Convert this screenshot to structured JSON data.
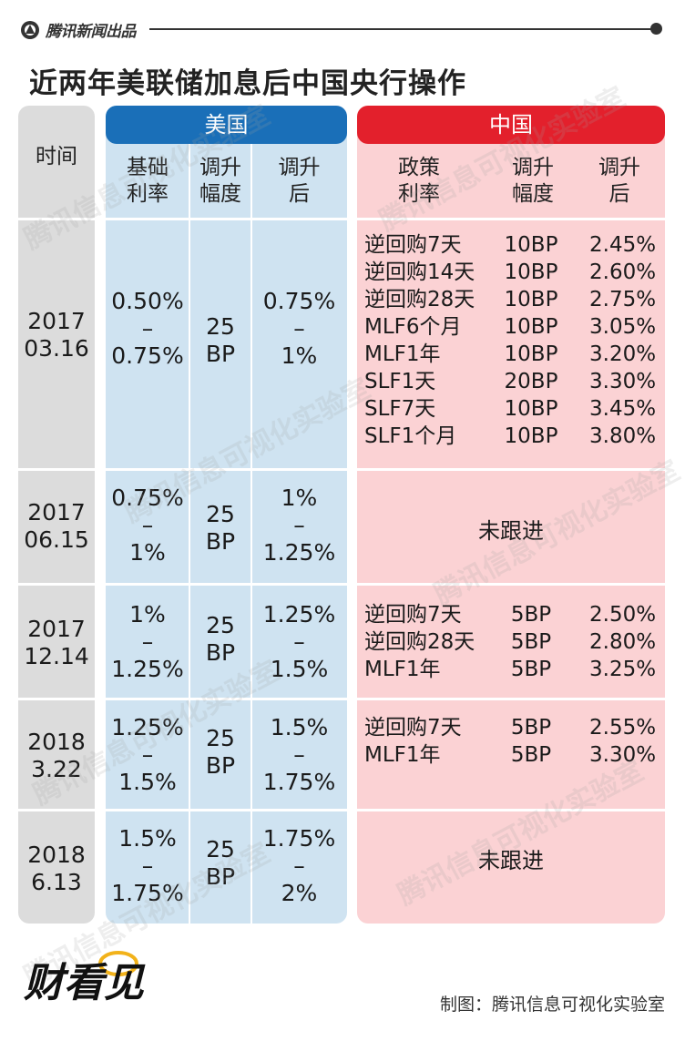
{
  "header": {
    "brand": "腾讯新闻出品",
    "title": "近两年美联储加息后中国央行操作"
  },
  "columns": {
    "time": "时间",
    "us_group": "美国",
    "cn_group": "中国",
    "us_base_rate": "基础\n利率",
    "us_hike": "调升\n幅度",
    "us_after": "调升\n后",
    "cn_policy_rate": "政策\n利率",
    "cn_hike": "调升\n幅度",
    "cn_after": "调升\n后"
  },
  "chart_data": {
    "type": "table",
    "title": "近两年美联储加息后中国央行操作",
    "rows": [
      {
        "date": "2017\n03.16",
        "us_base": "0.50%\n–\n0.75%",
        "us_hike": "25\nBP",
        "us_after": "0.75%\n–\n1%",
        "cn": [
          {
            "name": "逆回购7天",
            "bp": "10BP",
            "after": "2.45%"
          },
          {
            "name": "逆回购14天",
            "bp": "10BP",
            "after": "2.60%"
          },
          {
            "name": "逆回购28天",
            "bp": "10BP",
            "after": "2.75%"
          },
          {
            "name": "MLF6个月",
            "bp": "10BP",
            "after": "3.05%"
          },
          {
            "name": "MLF1年",
            "bp": "10BP",
            "after": "3.20%"
          },
          {
            "name": "SLF1天",
            "bp": "20BP",
            "after": "3.30%"
          },
          {
            "name": "SLF7天",
            "bp": "10BP",
            "after": "3.45%"
          },
          {
            "name": "SLF1个月",
            "bp": "10BP",
            "after": "3.80%"
          }
        ],
        "cn_note": ""
      },
      {
        "date": "2017\n06.15",
        "us_base": "0.75%\n–\n1%",
        "us_hike": "25\nBP",
        "us_after": "1%\n–\n1.25%",
        "cn": [],
        "cn_note": "未跟进"
      },
      {
        "date": "2017\n12.14",
        "us_base": "1%\n–\n1.25%",
        "us_hike": "25\nBP",
        "us_after": "1.25%\n–\n1.5%",
        "cn": [
          {
            "name": "逆回购7天",
            "bp": "5BP",
            "after": "2.50%"
          },
          {
            "name": "逆回购28天",
            "bp": "5BP",
            "after": "2.80%"
          },
          {
            "name": "MLF1年",
            "bp": "5BP",
            "after": "3.25%"
          }
        ],
        "cn_note": ""
      },
      {
        "date": "2018\n3.22",
        "us_base": "1.25%\n–\n1.5%",
        "us_hike": "25\nBP",
        "us_after": "1.5%\n–\n1.75%",
        "cn": [
          {
            "name": "逆回购7天",
            "bp": "5BP",
            "after": "2.55%"
          },
          {
            "name": "MLF1年",
            "bp": "5BP",
            "after": "3.30%"
          }
        ],
        "cn_note": ""
      },
      {
        "date": "2018\n6.13",
        "us_base": "1.5%\n–\n1.75%",
        "us_hike": "25\nBP",
        "us_after": "1.75%\n–\n2%",
        "cn": [],
        "cn_note": "未跟进"
      }
    ]
  },
  "watermark": "腾讯信息可视化实验室",
  "footer": {
    "logo": "财看见",
    "credit": "制图：腾讯信息可视化实验室"
  },
  "colors": {
    "us_header": "#1a6fb8",
    "cn_header": "#e3202c",
    "us_panel": "#cfe3f1",
    "cn_panel": "#fbd2d4",
    "time_panel": "#dcdcdc"
  }
}
